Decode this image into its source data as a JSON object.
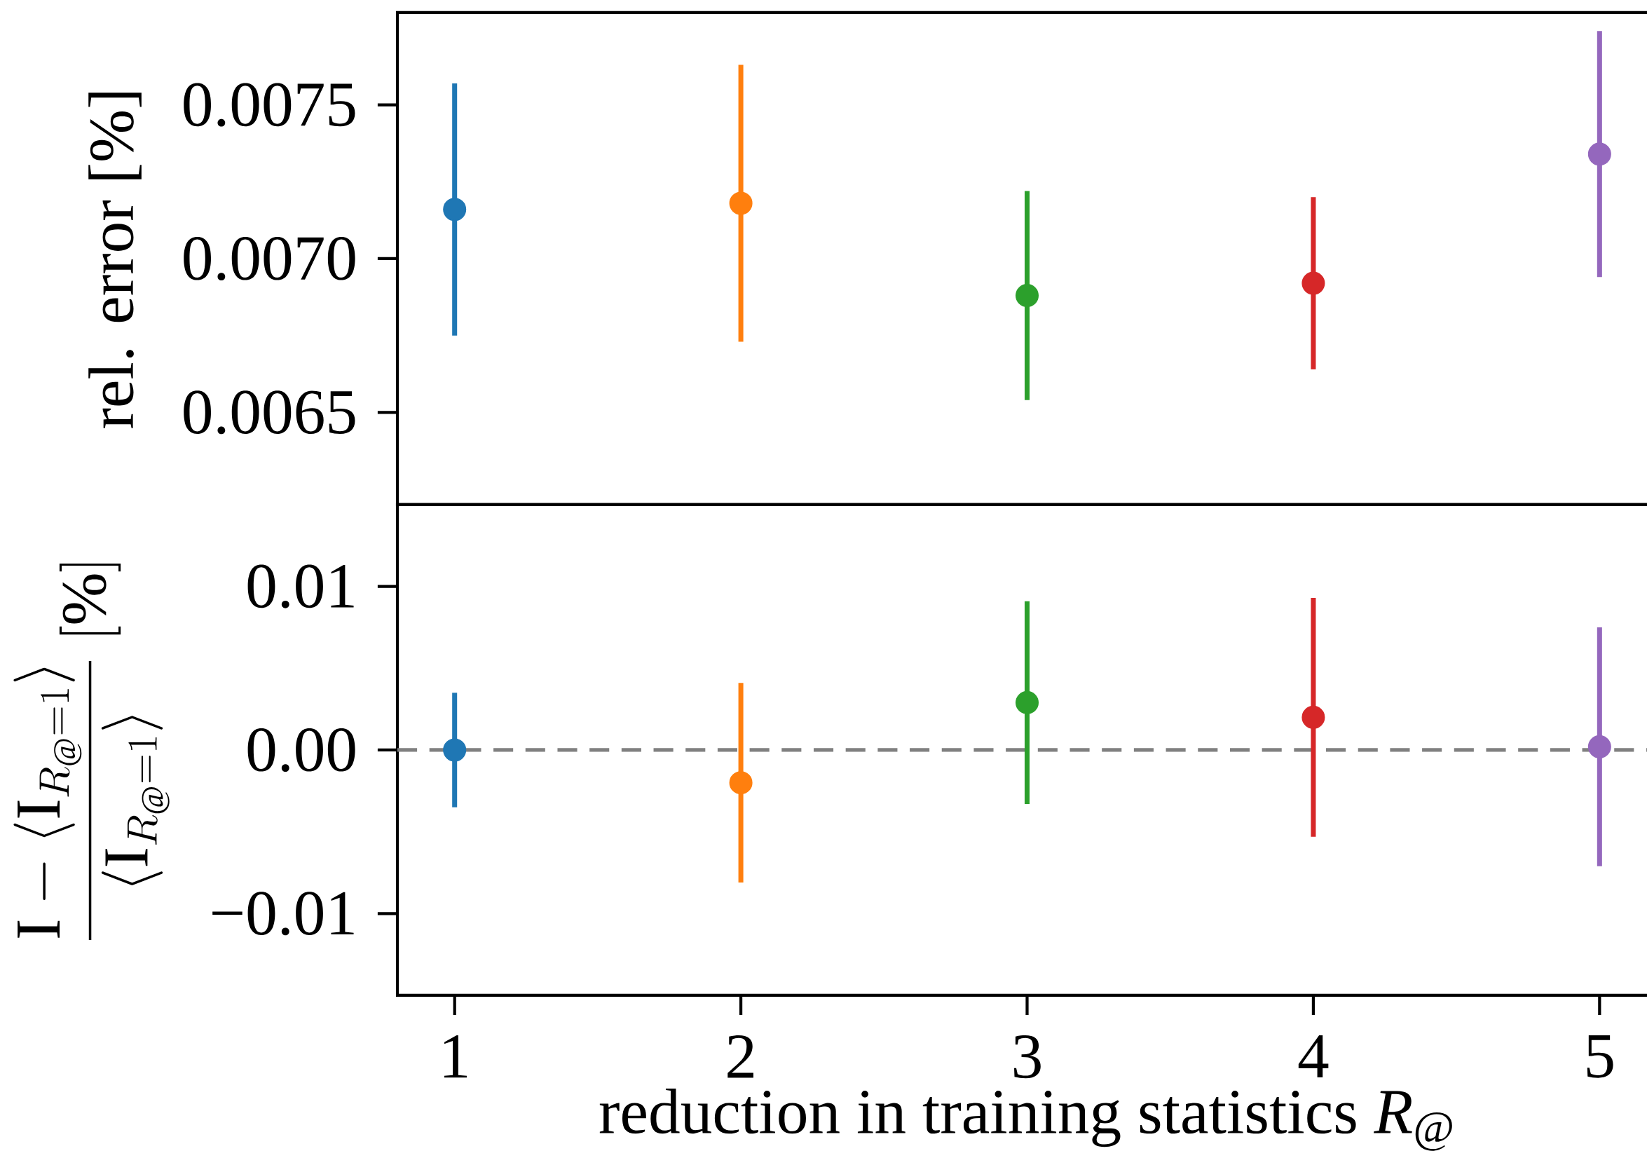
{
  "chart_data": [
    {
      "type": "scatter",
      "ylabel": "rel. error [%]",
      "x": [
        1,
        2,
        3,
        4,
        5
      ],
      "values": [
        0.00716,
        0.00718,
        0.00688,
        0.00692,
        0.00734
      ],
      "errors": [
        0.00041,
        0.00045,
        0.00034,
        0.00028,
        0.0004
      ],
      "colors": [
        "#1f77b4",
        "#ff7f0e",
        "#2ca02c",
        "#d62728",
        "#9467bd"
      ],
      "xlim": [
        0.8,
        5.2
      ],
      "xticks": [
        1,
        2,
        3,
        4,
        5
      ],
      "ylim": [
        0.0062,
        0.0078
      ],
      "yticks": [
        0.0065,
        {
          "value": 0.007,
          "label": "0.0070"
        },
        0.0075
      ],
      "tick_labels": "y",
      "marker": "circle",
      "grid": false
    },
    {
      "type": "scatter",
      "ylabel": "\\frac{\\mathrm{I}-\\langle\\mathrm{I}_{R_{@}=1}\\rangle}{\\langle\\mathrm{I}_{R_{@}=1}\\rangle}\\;[\\%]",
      "xlabel": "reduction in training statistics *R*$_{@}$",
      "x": [
        1,
        2,
        3,
        4,
        5
      ],
      "values": [
        0.0,
        -0.002,
        0.0029,
        0.002,
        0.0002
      ],
      "errors": [
        0.0035,
        0.0061,
        0.0062,
        0.0073,
        0.0073
      ],
      "colors": [
        "#1f77b4",
        "#ff7f0e",
        "#2ca02c",
        "#d62728",
        "#9467bd"
      ],
      "xlim": [
        0.8,
        5.2
      ],
      "xticks": [
        1,
        2,
        3,
        4,
        5
      ],
      "ylim": [
        -0.015,
        0.015
      ],
      "yticks": [
        {
          "value": -0.01,
          "label": "−0.01"
        },
        {
          "value": 0.0,
          "label": "0.00"
        },
        0.01
      ],
      "ref_lines": [
        {
          "axis": "y",
          "value": 0,
          "color": "#808080",
          "line_style": "dashed"
        }
      ],
      "marker": "circle",
      "grid": false
    }
  ]
}
